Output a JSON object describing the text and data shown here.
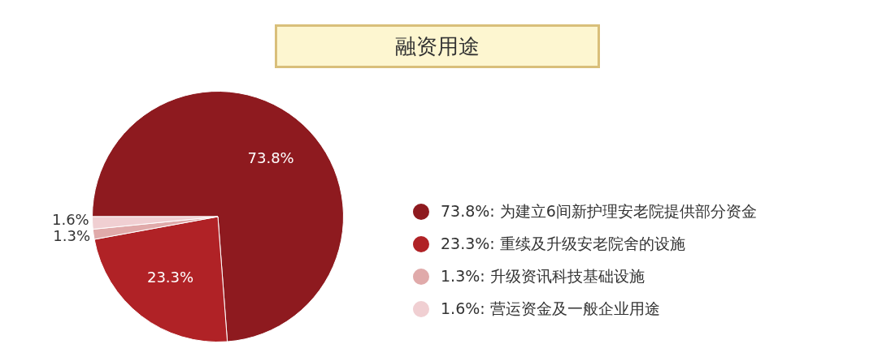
{
  "chart_data": {
    "type": "pie",
    "title": "融资用途",
    "categories": [
      "为建立6间新护理安老院提供部分资金",
      "重续及升级安老院舍的设施",
      "升级资讯科技基础设施",
      "营运资金及一般企业用途"
    ],
    "values": [
      73.8,
      23.3,
      1.3,
      1.6
    ],
    "value_labels": [
      "73.8%",
      "23.3%",
      "1.3%",
      "1.6%"
    ],
    "colors": [
      "#8e1a1f",
      "#b02226",
      "#e0aaaa",
      "#f0cfd2"
    ],
    "legend": "right"
  }
}
